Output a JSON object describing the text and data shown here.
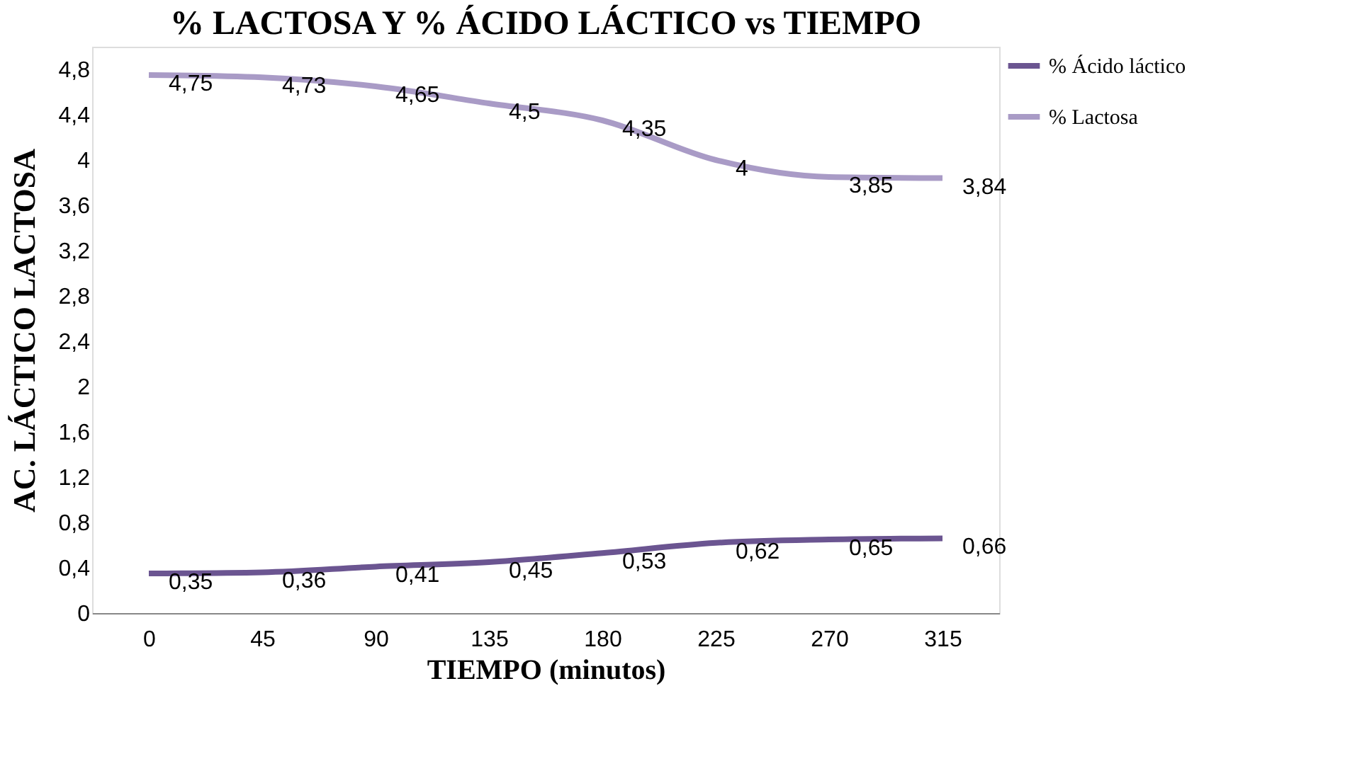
{
  "chart_data": {
    "type": "line",
    "title": "% LACTOSA Y % ÁCIDO LÁCTICO vs TIEMPO",
    "xlabel": "TIEMPO (minutos)",
    "ylabel": "AC. LÁCTICO       LACTOSA",
    "categories": [
      "0",
      "45",
      "90",
      "135",
      "180",
      "225",
      "270",
      "315"
    ],
    "series": [
      {
        "name": "% Ácido láctico",
        "color": "#6b5591",
        "values": [
          0.35,
          0.36,
          0.41,
          0.45,
          0.53,
          0.62,
          0.65,
          0.66
        ],
        "value_labels": [
          "0,35",
          "0,36",
          "0,41",
          "0,45",
          "0,53",
          "0,62",
          "0,65",
          "0,66"
        ]
      },
      {
        "name": "% Lactosa",
        "color": "#a99bc6",
        "values": [
          4.75,
          4.73,
          4.65,
          4.5,
          4.35,
          4.0,
          3.85,
          3.84
        ],
        "value_labels": [
          "4,75",
          "4,73",
          "4,65",
          "4,5",
          "4,35",
          "4",
          "3,85",
          "3,84"
        ]
      }
    ],
    "ylim": [
      0,
      5.0
    ],
    "yticks": [
      {
        "value": 0,
        "label": "0"
      },
      {
        "value": 0.4,
        "label": "0,4"
      },
      {
        "value": 0.8,
        "label": "0,8"
      },
      {
        "value": 1.2,
        "label": "1,2"
      },
      {
        "value": 1.6,
        "label": "1,6"
      },
      {
        "value": 2,
        "label": "2"
      },
      {
        "value": 2.4,
        "label": "2,4"
      },
      {
        "value": 2.8,
        "label": "2,8"
      },
      {
        "value": 3.2,
        "label": "3,2"
      },
      {
        "value": 3.6,
        "label": "3,6"
      },
      {
        "value": 4,
        "label": "4"
      },
      {
        "value": 4.4,
        "label": "4,4"
      },
      {
        "value": 4.8,
        "label": "4,8"
      }
    ],
    "legend": "right",
    "grid": false,
    "marker": "none",
    "line_style": "solid"
  }
}
